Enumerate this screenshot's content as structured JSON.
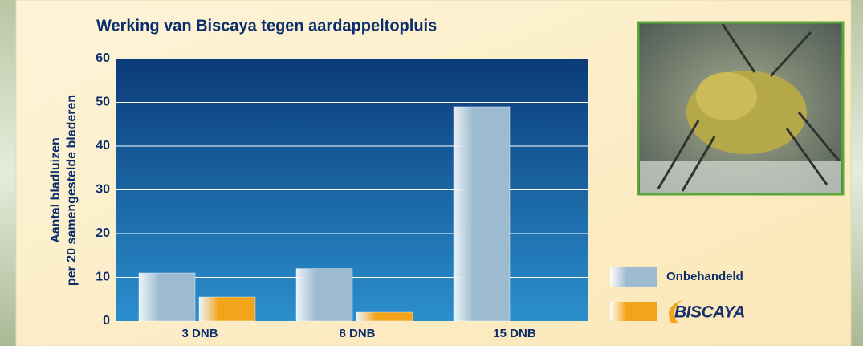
{
  "chart_data": {
    "type": "bar",
    "title": "Werking van Biscaya tegen aardappeltopluis",
    "ylabel": [
      "Aantal bladluizen",
      "per 20 samengestelde bladeren"
    ],
    "categories": [
      "3 DNB",
      "8 DNB",
      "15 DNB"
    ],
    "series": [
      {
        "name": "Onbehandeld",
        "color": "#9dbbd0",
        "values": [
          11,
          12,
          49
        ]
      },
      {
        "name": "BISCAYA",
        "color": "#f4a41a",
        "values": [
          5.5,
          2,
          0
        ]
      }
    ],
    "ylim": [
      0,
      60
    ],
    "yticks": [
      0,
      10,
      20,
      30,
      40,
      50,
      60
    ],
    "grid": true,
    "legend": "right"
  }
}
